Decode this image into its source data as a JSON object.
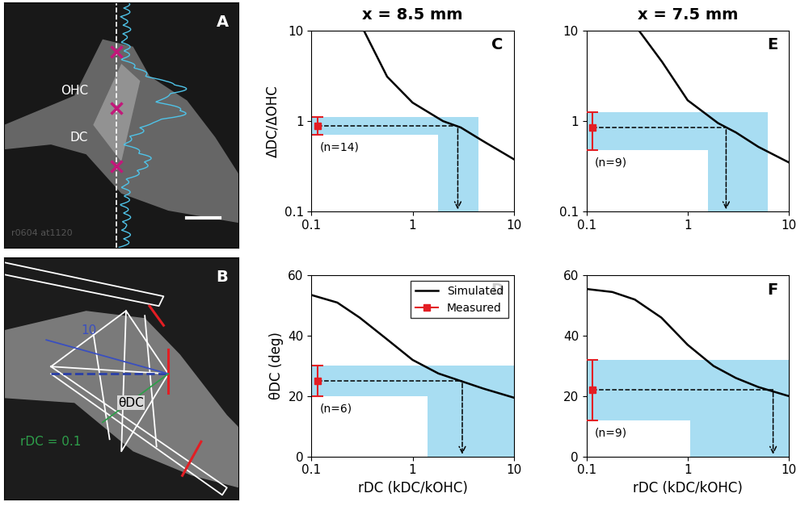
{
  "image_panels": [
    {
      "panel_label": "A",
      "labels": [
        "OHC",
        "DC"
      ],
      "watermark": "r0604 at1120"
    },
    {
      "panel_label": "B",
      "labels": [
        "10",
        "rDC = 0.1",
        "θDC"
      ]
    }
  ],
  "chart_data": [
    {
      "type": "line",
      "panel_label": "C",
      "title": "x = 8.5 mm",
      "ylabel": "ΔDC/ΔOHC",
      "log": true,
      "xlim": [
        0.1,
        10
      ],
      "ylim": [
        0.1,
        10
      ],
      "xticks": [
        0.1,
        1,
        10
      ],
      "yticks": [
        0.1,
        1,
        10
      ],
      "series": [
        {
          "name": "Simulated",
          "color": "#000000",
          "line_style": "solid",
          "x": [
            0.33,
            0.56,
            1.0,
            2.0,
            3.0,
            5.0,
            10.0
          ],
          "values": [
            10,
            3.1,
            1.6,
            1.0,
            0.85,
            0.6,
            0.38
          ]
        }
      ],
      "measured": {
        "name": "Measured",
        "color": "#e31e24",
        "marker": "square",
        "x": 0.115,
        "value": 0.88,
        "error": [
          0.7,
          1.12
        ],
        "n_label": "(n=14)"
      },
      "estimate": {
        "value": 2.8,
        "range": [
          1.8,
          4.5
        ],
        "color": "#a8ddf2"
      }
    },
    {
      "type": "line",
      "panel_label": "D",
      "ylabel": "θDC (deg)",
      "xlabel": "rDC (kDC/kOHC)",
      "log": "x",
      "xlim": [
        0.1,
        10
      ],
      "ylim": [
        0,
        60
      ],
      "xticks": [
        0.1,
        1,
        10
      ],
      "yticks": [
        0,
        20,
        40,
        60
      ],
      "legend": "upper right",
      "series": [
        {
          "name": "Simulated",
          "color": "#000000",
          "line_style": "solid",
          "x": [
            0.1,
            0.18,
            0.3,
            0.55,
            1.0,
            1.8,
            3.0,
            5.0,
            10.0
          ],
          "values": [
            53.5,
            51,
            46,
            39,
            32,
            27.5,
            25,
            22.5,
            19.5
          ]
        }
      ],
      "measured": {
        "name": "Measured",
        "color": "#e31e24",
        "marker": "square",
        "x": 0.115,
        "value": 25,
        "error": [
          20,
          30
        ],
        "n_label": "(n=6)"
      },
      "estimate": {
        "value": 3.1,
        "range": [
          1.4,
          10
        ],
        "color": "#a8ddf2"
      }
    },
    {
      "type": "line",
      "panel_label": "E",
      "title": "x = 7.5 mm",
      "log": true,
      "xlim": [
        0.1,
        10
      ],
      "ylim": [
        0.1,
        10
      ],
      "xticks": [
        0.1,
        1,
        10
      ],
      "yticks": [
        0.1,
        1,
        10
      ],
      "series": [
        {
          "name": "Simulated",
          "color": "#000000",
          "line_style": "solid",
          "x": [
            0.33,
            0.56,
            1.0,
            2.0,
            3.0,
            5.0,
            10.0
          ],
          "values": [
            10,
            4.5,
            1.7,
            0.95,
            0.75,
            0.52,
            0.35
          ]
        }
      ],
      "measured": {
        "name": "Measured",
        "color": "#e31e24",
        "marker": "square",
        "x": 0.115,
        "value": 0.85,
        "error": [
          0.48,
          1.25
        ],
        "n_label": "(n=9)"
      },
      "estimate": {
        "value": 2.4,
        "range": [
          1.6,
          6.2
        ],
        "color": "#a8ddf2"
      }
    },
    {
      "type": "line",
      "panel_label": "F",
      "xlabel": "rDC (kDC/kOHC)",
      "log": "x",
      "xlim": [
        0.1,
        10
      ],
      "ylim": [
        0,
        60
      ],
      "xticks": [
        0.1,
        1,
        10
      ],
      "yticks": [
        0,
        20,
        40,
        60
      ],
      "series": [
        {
          "name": "Simulated",
          "color": "#000000",
          "line_style": "solid",
          "x": [
            0.1,
            0.18,
            0.3,
            0.55,
            1.0,
            1.8,
            3.0,
            5.0,
            10.0
          ],
          "values": [
            55.5,
            54.5,
            52,
            46,
            37,
            30,
            26,
            23,
            20
          ]
        }
      ],
      "measured": {
        "name": "Measured",
        "color": "#e31e24",
        "marker": "square",
        "x": 0.115,
        "value": 22,
        "error": [
          12,
          32
        ],
        "n_label": "(n=9)"
      },
      "estimate": {
        "value": 7.0,
        "range": [
          1.05,
          10
        ],
        "color": "#a8ddf2"
      }
    }
  ]
}
